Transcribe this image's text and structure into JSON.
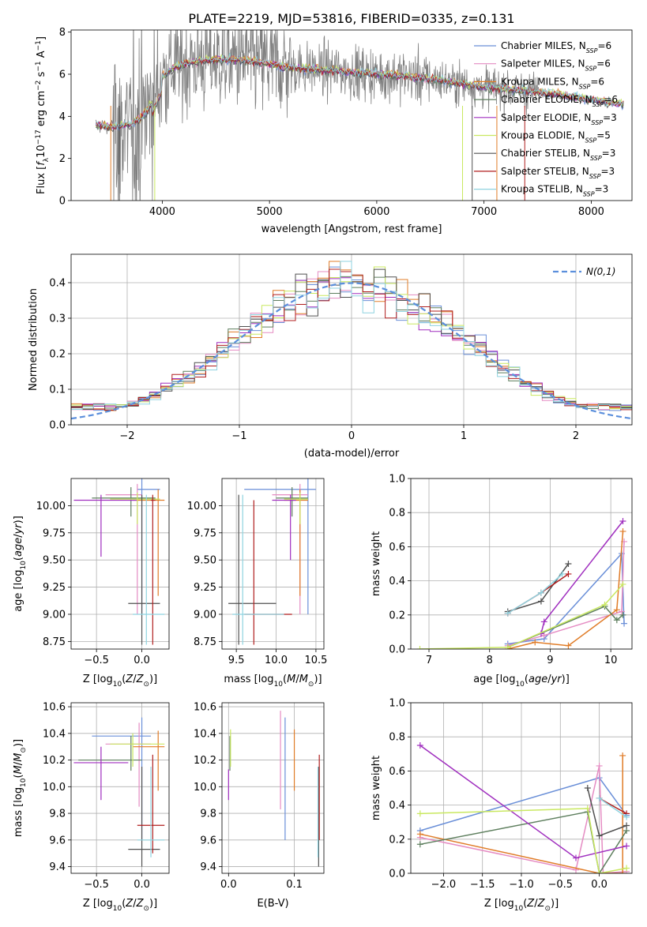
{
  "figure_title": "PLATE=2219, MJD=53816, FIBERID=0335, z=0.131",
  "colors": {
    "Chabrier MILES": "#6a8fd8",
    "Salpeter MILES": "#e58cc3",
    "Kroupa MILES": "#e07c28",
    "Chabrier ELODIE": "#5e7f5e",
    "Salpeter ELODIE": "#a02fbf",
    "Kroupa ELODIE": "#c9e860",
    "Chabrier STELIB": "#505050",
    "Salpeter STELIB": "#b01e1e",
    "Kroupa STELIB": "#8fd3e0",
    "data": "#808080"
  },
  "chart_data": [
    {
      "id": "spectrum",
      "type": "line",
      "xlabel": "wavelength [Angstrom, rest frame]",
      "ylabel": "Flux [f_λ10^-17 erg cm^-2 s^-1 A^-1]",
      "xlim": [
        3150,
        8380
      ],
      "ylim": [
        0,
        8.1
      ],
      "xticks": [
        4000,
        5000,
        6000,
        7000,
        8000
      ],
      "yticks": [
        0,
        2,
        4,
        6,
        8
      ],
      "grid": false,
      "legend_position": "upper right",
      "legend": [
        {
          "name": "Chabrier MILES",
          "sub": "SSP",
          "n": "6"
        },
        {
          "name": "Salpeter MILES",
          "sub": "SSP",
          "n": "6"
        },
        {
          "name": "Kroupa MILES",
          "sub": "SSP",
          "n": "6"
        },
        {
          "name": "Chabrier ELODIE",
          "sub": "SSP",
          "n": "6"
        },
        {
          "name": "Salpeter ELODIE",
          "sub": "SSP",
          "n": "3"
        },
        {
          "name": "Kroupa ELODIE",
          "sub": "SSP",
          "n": "5"
        },
        {
          "name": "Chabrier STELIB",
          "sub": "SSP",
          "n": "3"
        },
        {
          "name": "Salpeter STELIB",
          "sub": "SSP",
          "n": "3"
        },
        {
          "name": "Kroupa STELIB",
          "sub": "SSP",
          "n": "3"
        }
      ],
      "continuum_model": {
        "x": [
          3380,
          3500,
          3700,
          3800,
          3900,
          4000,
          4100,
          4300,
          4500,
          4700,
          5000,
          5200,
          5500,
          6000,
          6300,
          6600,
          7000,
          7400,
          7600,
          8000,
          8200
        ],
        "y": [
          3.6,
          3.5,
          3.6,
          3.9,
          4.6,
          5.9,
          6.3,
          6.6,
          6.7,
          6.7,
          6.5,
          6.3,
          6.2,
          6.0,
          5.9,
          5.7,
          5.4,
          5.2,
          5.1,
          4.8,
          4.6
        ]
      }
    },
    {
      "id": "residuals",
      "type": "line",
      "xlabel": "(data-model)/error",
      "ylabel": "Normed distribution",
      "xlim": [
        -2.5,
        2.5
      ],
      "ylim": [
        0,
        0.48
      ],
      "xticks": [
        -2,
        -1,
        0,
        1,
        2
      ],
      "yticks": [
        0.0,
        0.1,
        0.2,
        0.3,
        0.4
      ],
      "grid": true,
      "legend_position": "upper right",
      "reference_label": "N(0,1)"
    },
    {
      "id": "age_vs_Z",
      "type": "scatter",
      "xlabel": "Z [log10(Z/Z_sun)]",
      "ylabel": "age [log10(age/yr)]",
      "xlim": [
        -0.78,
        0.3
      ],
      "ylim": [
        8.68,
        10.25
      ],
      "xticks": [
        -0.5,
        0.0
      ],
      "yticks": [
        8.75,
        9.0,
        9.25,
        9.5,
        9.75,
        10.0
      ],
      "grid": true,
      "points": [
        {
          "s": "Chabrier MILES",
          "x": 0.0,
          "y": 10.15,
          "xlo": -0.05,
          "xhi": 0.2,
          "ylo": 9.0,
          "yhi": 10.3
        },
        {
          "s": "Salpeter MILES",
          "x": -0.05,
          "y": 10.1,
          "xlo": -0.4,
          "xhi": 0.0,
          "ylo": 9.0,
          "yhi": 10.2
        },
        {
          "s": "Kroupa MILES",
          "x": 0.18,
          "y": 10.05,
          "xlo": -0.1,
          "xhi": 0.25,
          "ylo": 9.17,
          "yhi": 10.15
        },
        {
          "s": "Chabrier ELODIE",
          "x": -0.12,
          "y": 10.07,
          "xlo": -0.55,
          "xhi": 0.15,
          "ylo": 9.9,
          "yhi": 10.17
        },
        {
          "s": "Salpeter ELODIE",
          "x": -0.45,
          "y": 10.05,
          "xlo": -0.75,
          "xhi": -0.05,
          "ylo": 9.53,
          "yhi": 10.1
        },
        {
          "s": "Kroupa ELODIE",
          "x": -0.05,
          "y": 10.06,
          "xlo": -0.35,
          "xhi": 0.2,
          "ylo": 9.83,
          "yhi": 10.12
        },
        {
          "s": "Chabrier STELIB",
          "x": 0.0,
          "y": 9.1,
          "xlo": -0.15,
          "xhi": 0.2,
          "ylo": 8.72,
          "yhi": 10.1
        },
        {
          "s": "Salpeter STELIB",
          "x": 0.12,
          "y": 10.05,
          "xlo": 0.1,
          "xhi": 0.15,
          "ylo": 8.72,
          "yhi": 10.1
        },
        {
          "s": "Kroupa STELIB",
          "x": 0.05,
          "y": 9.0,
          "xlo": -0.1,
          "xhi": 0.25,
          "ylo": 8.72,
          "yhi": 10.1
        }
      ]
    },
    {
      "id": "age_vs_mass",
      "type": "scatter",
      "xlabel": "mass [log10(M/M_sun)]",
      "xlim": [
        9.32,
        10.6
      ],
      "ylim": [
        8.68,
        10.25
      ],
      "xticks": [
        9.5,
        10.0,
        10.5
      ],
      "yticks": [
        8.75,
        9.0,
        9.25,
        9.5,
        9.75,
        10.0
      ],
      "grid": true,
      "points": [
        {
          "s": "Chabrier MILES",
          "x": 10.4,
          "y": 10.15,
          "xlo": 9.6,
          "xhi": 10.5,
          "ylo": 9.0,
          "yhi": 10.3
        },
        {
          "s": "Salpeter MILES",
          "x": 10.3,
          "y": 10.1,
          "xlo": 9.95,
          "xhi": 10.4,
          "ylo": 9.0,
          "yhi": 10.2
        },
        {
          "s": "Kroupa MILES",
          "x": 10.3,
          "y": 10.05,
          "xlo": 10.1,
          "xhi": 10.4,
          "ylo": 9.17,
          "yhi": 10.15
        },
        {
          "s": "Chabrier ELODIE",
          "x": 10.2,
          "y": 10.07,
          "xlo": 10.0,
          "xhi": 10.4,
          "ylo": 9.9,
          "yhi": 10.17
        },
        {
          "s": "Salpeter ELODIE",
          "x": 10.18,
          "y": 10.05,
          "xlo": 9.95,
          "xhi": 10.25,
          "ylo": 9.5,
          "yhi": 10.1
        },
        {
          "s": "Kroupa ELODIE",
          "x": 10.3,
          "y": 10.06,
          "xlo": 10.1,
          "xhi": 10.4,
          "ylo": 9.83,
          "yhi": 10.12
        },
        {
          "s": "Chabrier STELIB",
          "x": 9.53,
          "y": 9.1,
          "xlo": 9.4,
          "xhi": 10.0,
          "ylo": 8.72,
          "yhi": 10.1
        },
        {
          "s": "Salpeter STELIB",
          "x": 9.72,
          "y": 9.0,
          "xlo": 9.6,
          "xhi": 10.2,
          "ylo": 8.72,
          "yhi": 10.05
        },
        {
          "s": "Kroupa STELIB",
          "x": 9.58,
          "y": 9.0,
          "xlo": 9.45,
          "xhi": 10.1,
          "ylo": 8.72,
          "yhi": 10.1
        }
      ]
    },
    {
      "id": "weight_vs_age",
      "type": "line",
      "xlabel": "age [log10(age/yr)]",
      "ylabel": "mass weight",
      "xlim": [
        6.7,
        10.35
      ],
      "ylim": [
        0,
        1.0
      ],
      "xticks": [
        7,
        8,
        9,
        10
      ],
      "yticks": [
        0.0,
        0.2,
        0.4,
        0.6,
        0.8,
        1.0
      ],
      "grid": true,
      "series": [
        {
          "s": "Chabrier MILES",
          "x": [
            8.3,
            8.9,
            10.18,
            10.22
          ],
          "y": [
            0.03,
            0.06,
            0.56,
            0.15
          ]
        },
        {
          "s": "Salpeter MILES",
          "x": [
            8.3,
            8.9,
            10.18,
            10.22
          ],
          "y": [
            0.02,
            0.08,
            0.22,
            0.63
          ]
        },
        {
          "s": "Kroupa MILES",
          "x": [
            8.3,
            8.75,
            9.3,
            10.1,
            10.2
          ],
          "y": [
            0.0,
            0.04,
            0.02,
            0.23,
            0.69
          ]
        },
        {
          "s": "Chabrier ELODIE",
          "x": [
            8.3,
            9.9,
            10.1,
            10.2
          ],
          "y": [
            0.01,
            0.25,
            0.17,
            0.2
          ]
        },
        {
          "s": "Salpeter ELODIE",
          "x": [
            8.85,
            8.9,
            10.2
          ],
          "y": [
            0.09,
            0.16,
            0.75
          ]
        },
        {
          "s": "Kroupa ELODIE",
          "x": [
            6.85,
            8.3,
            9.9,
            10.2
          ],
          "y": [
            0.0,
            0.01,
            0.26,
            0.38
          ]
        },
        {
          "s": "Chabrier STELIB",
          "x": [
            8.3,
            8.85,
            9.3
          ],
          "y": [
            0.22,
            0.28,
            0.5
          ]
        },
        {
          "s": "Salpeter STELIB",
          "x": [
            8.3,
            8.85,
            9.3
          ],
          "y": [
            0.21,
            0.33,
            0.44
          ]
        },
        {
          "s": "Kroupa STELIB",
          "x": [
            8.3,
            8.85,
            9.2
          ],
          "y": [
            0.21,
            0.33,
            0.44
          ]
        }
      ]
    },
    {
      "id": "mass_vs_Z",
      "type": "scatter",
      "xlabel": "Z [log10(Z/Z_sun)]",
      "ylabel": "mass [log10(M/M_sun)]",
      "xlim": [
        -0.78,
        0.3
      ],
      "ylim": [
        9.35,
        10.63
      ],
      "xticks": [
        -0.5,
        0.0
      ],
      "yticks": [
        9.4,
        9.6,
        9.8,
        10.0,
        10.2,
        10.4,
        10.6
      ],
      "grid": true,
      "points": [
        {
          "s": "Chabrier MILES",
          "x": 0.0,
          "y": 10.38,
          "xlo": -0.55,
          "xhi": 0.1,
          "ylo": 9.6,
          "yhi": 10.52
        },
        {
          "s": "Salpeter MILES",
          "x": -0.03,
          "y": 10.32,
          "xlo": -0.4,
          "xhi": 0.1,
          "ylo": 9.85,
          "yhi": 10.48
        },
        {
          "s": "Kroupa MILES",
          "x": 0.18,
          "y": 10.3,
          "xlo": -0.1,
          "xhi": 0.25,
          "ylo": 9.97,
          "yhi": 10.42
        },
        {
          "s": "Chabrier ELODIE",
          "x": -0.12,
          "y": 10.2,
          "xlo": -0.7,
          "xhi": 0.0,
          "ylo": 10.12,
          "yhi": 10.38
        },
        {
          "s": "Salpeter ELODIE",
          "x": -0.45,
          "y": 10.18,
          "xlo": -0.75,
          "xhi": -0.15,
          "ylo": 9.9,
          "yhi": 10.3
        },
        {
          "s": "Kroupa ELODIE",
          "x": -0.1,
          "y": 10.32,
          "xlo": -0.35,
          "xhi": 0.25,
          "ylo": 10.15,
          "yhi": 10.4
        },
        {
          "s": "Chabrier STELIB",
          "x": 0.0,
          "y": 9.53,
          "xlo": -0.15,
          "xhi": 0.2,
          "ylo": 9.4,
          "yhi": 10.15
        },
        {
          "s": "Salpeter STELIB",
          "x": 0.12,
          "y": 9.71,
          "xlo": -0.05,
          "xhi": 0.25,
          "ylo": 9.5,
          "yhi": 10.24
        },
        {
          "s": "Kroupa STELIB",
          "x": 0.1,
          "y": 9.6,
          "xlo": -0.05,
          "xhi": 0.25,
          "ylo": 9.47,
          "yhi": 10.15
        }
      ]
    },
    {
      "id": "mass_vs_EBV",
      "type": "scatter",
      "xlabel": "E(B-V)",
      "xlim": [
        -0.01,
        0.145
      ],
      "ylim": [
        9.35,
        10.63
      ],
      "xticks": [
        0.0,
        0.1
      ],
      "yticks": [
        9.4,
        9.6,
        9.8,
        10.0,
        10.2,
        10.4,
        10.6
      ],
      "grid": true,
      "points": [
        {
          "s": "Chabrier MILES",
          "x": 0.086,
          "y": 10.05,
          "ylo": 9.6,
          "yhi": 10.52
        },
        {
          "s": "Salpeter MILES",
          "x": 0.079,
          "y": 10.2,
          "ylo": 9.83,
          "yhi": 10.57
        },
        {
          "s": "Kroupa MILES",
          "x": 0.1,
          "y": 10.2,
          "ylo": 9.97,
          "yhi": 10.43
        },
        {
          "s": "Chabrier ELODIE",
          "x": 0.002,
          "y": 10.3,
          "ylo": 10.12,
          "yhi": 10.38
        },
        {
          "s": "Salpeter ELODIE",
          "x": 0.0,
          "y": 10.0,
          "ylo": 9.9,
          "yhi": 10.13
        },
        {
          "s": "Kroupa ELODIE",
          "x": 0.003,
          "y": 10.28,
          "ylo": 10.15,
          "yhi": 10.43
        },
        {
          "s": "Chabrier STELIB",
          "x": 0.137,
          "y": 9.8,
          "ylo": 9.4,
          "yhi": 10.15
        },
        {
          "s": "Salpeter STELIB",
          "x": 0.138,
          "y": 9.9,
          "ylo": 9.6,
          "yhi": 10.24
        },
        {
          "s": "Kroupa STELIB",
          "x": 0.136,
          "y": 9.8,
          "ylo": 9.47,
          "yhi": 10.15
        }
      ]
    },
    {
      "id": "weight_vs_Z",
      "type": "line",
      "xlabel": "Z [log10(Z/Z_sun)]",
      "ylabel": "mass weight",
      "xlim": [
        -2.42,
        0.42
      ],
      "ylim": [
        0,
        1.0
      ],
      "xticks": [
        -2.0,
        -1.5,
        -1.0,
        -0.5,
        0.0
      ],
      "yticks": [
        0.0,
        0.2,
        0.4,
        0.6,
        0.8,
        1.0
      ],
      "grid": true,
      "series": [
        {
          "s": "Chabrier MILES",
          "x": [
            -2.3,
            0.0,
            0.35
          ],
          "y": [
            0.25,
            0.56,
            0.34
          ]
        },
        {
          "s": "Salpeter MILES",
          "x": [
            -2.3,
            -0.3,
            0.0,
            0.05,
            0.35
          ],
          "y": [
            0.21,
            0.02,
            0.63,
            0.0,
            0.01
          ]
        },
        {
          "s": "Kroupa MILES",
          "x": [
            -2.3,
            0.0,
            0.3,
            0.3
          ],
          "y": [
            0.23,
            0.0,
            0.0,
            0.69
          ]
        },
        {
          "s": "Chabrier ELODIE",
          "x": [
            -2.3,
            -0.15,
            0.0,
            0.35
          ],
          "y": [
            0.17,
            0.36,
            0.0,
            0.25
          ]
        },
        {
          "s": "Salpeter ELODIE",
          "x": [
            -2.3,
            -0.3,
            0.35
          ],
          "y": [
            0.75,
            0.09,
            0.16
          ]
        },
        {
          "s": "Kroupa ELODIE",
          "x": [
            -2.3,
            -0.15,
            0.0,
            0.35
          ],
          "y": [
            0.35,
            0.38,
            0.0,
            0.03
          ]
        },
        {
          "s": "Chabrier STELIB",
          "x": [
            -0.15,
            0.0,
            0.35
          ],
          "y": [
            0.5,
            0.22,
            0.28
          ]
        },
        {
          "s": "Salpeter STELIB",
          "x": [
            0.0,
            0.35
          ],
          "y": [
            0.44,
            0.35
          ]
        },
        {
          "s": "Kroupa STELIB",
          "x": [
            0.0,
            0.35
          ],
          "y": [
            0.44,
            0.33
          ]
        }
      ]
    }
  ]
}
